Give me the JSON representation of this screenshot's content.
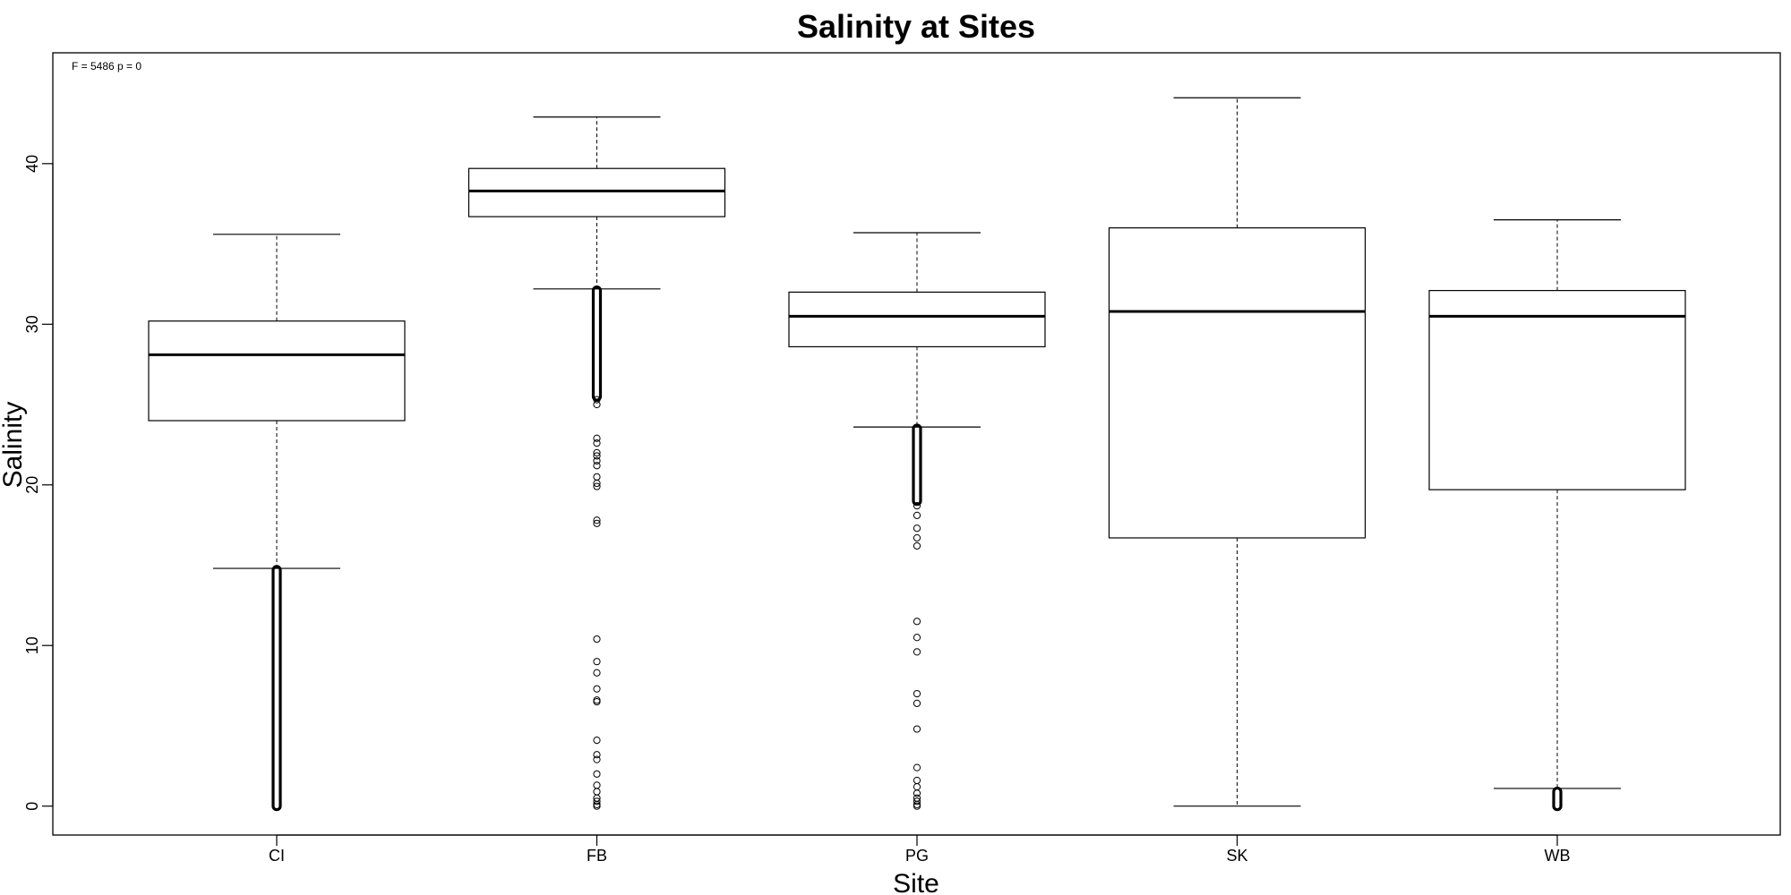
{
  "chart_data": {
    "type": "boxplot",
    "title": "Salinity at Sites",
    "xlabel": "Site",
    "ylabel": "Salinity",
    "annotation": "F = 5486 p = 0",
    "ylim": [
      -1.8,
      46.9
    ],
    "yticks": [
      0,
      10,
      20,
      30,
      40
    ],
    "categories": [
      "CI",
      "FB",
      "PG",
      "SK",
      "WB"
    ],
    "boxes": [
      {
        "site": "CI",
        "whisker_low": 14.8,
        "q1": 24.0,
        "median": 28.1,
        "q3": 30.2,
        "whisker_high": 35.6,
        "outlier_range_low": [
          0.0,
          14.7
        ],
        "outliers": []
      },
      {
        "site": "FB",
        "whisker_low": 32.2,
        "q1": 36.7,
        "median": 38.3,
        "q3": 39.7,
        "whisker_high": 42.9,
        "outlier_range_low": [
          25.5,
          32.1
        ],
        "outliers": [
          25.0,
          25.3,
          22.9,
          22.6,
          22.0,
          21.8,
          21.5,
          21.2,
          20.5,
          20.1,
          19.9,
          17.8,
          17.6,
          10.4,
          9.0,
          8.3,
          7.3,
          6.6,
          6.5,
          4.1,
          3.2,
          2.9,
          2.0,
          1.3,
          0.9,
          0.5,
          0.3,
          0.1,
          0.0
        ]
      },
      {
        "site": "PG",
        "whisker_low": 23.6,
        "q1": 28.6,
        "median": 30.5,
        "q3": 32.0,
        "whisker_high": 35.7,
        "outlier_range_low": [
          19.0,
          23.5
        ],
        "outliers": [
          18.7,
          18.1,
          17.3,
          16.7,
          16.2,
          11.5,
          10.5,
          9.6,
          7.0,
          6.4,
          4.8,
          2.4,
          1.6,
          1.2,
          0.8,
          0.5,
          0.3,
          0.1,
          0.0
        ]
      },
      {
        "site": "SK",
        "whisker_low": 0.0,
        "q1": 16.7,
        "median": 30.8,
        "q3": 36.0,
        "whisker_high": 44.1,
        "outlier_range_low": null,
        "outliers": []
      },
      {
        "site": "WB",
        "whisker_low": 1.1,
        "q1": 19.7,
        "median": 30.5,
        "q3": 32.1,
        "whisker_high": 36.5,
        "outlier_range_low": [
          0.0,
          0.9
        ],
        "outliers": []
      }
    ]
  }
}
